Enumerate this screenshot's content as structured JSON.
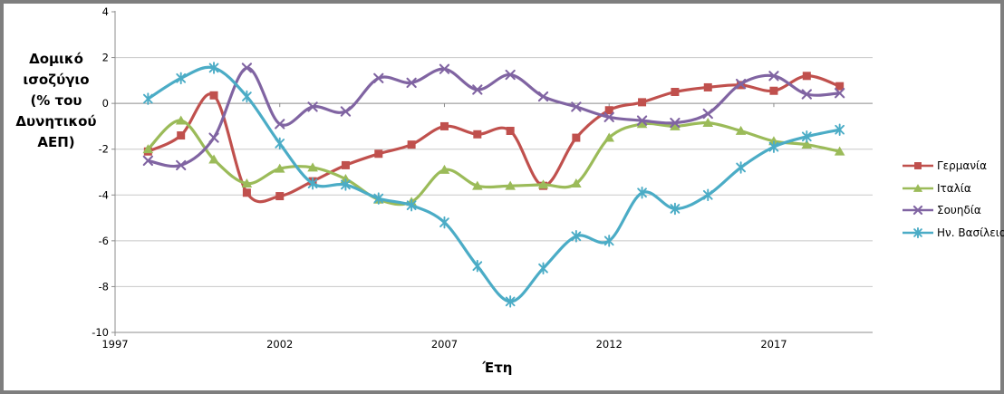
{
  "chart_data": {
    "type": "line",
    "smoothed": true,
    "xlabel": "Έτη",
    "ylabel": "Δομικό ισοζύγιο (% του Δυνητικού ΑΕΠ)",
    "ylabel_lines": [
      "Δομικό",
      "ισοζύγιο",
      "(% του",
      "Δυνητικού",
      "ΑΕΠ)"
    ],
    "xlim": [
      1997,
      2020
    ],
    "ylim": [
      -10,
      4
    ],
    "xticks": [
      1997,
      2002,
      2007,
      2012,
      2017
    ],
    "yticks": [
      4,
      2,
      0,
      -2,
      -4,
      -6,
      -8,
      -10
    ],
    "grid": true,
    "legend_position": "right",
    "x": [
      1998,
      1999,
      2000,
      2001,
      2002,
      2003,
      2004,
      2005,
      2006,
      2007,
      2008,
      2009,
      2010,
      2011,
      2012,
      2013,
      2014,
      2015,
      2016,
      2017,
      2018,
      2019
    ],
    "series": [
      {
        "id": "germany",
        "name": "Γερμανία",
        "color": "#C0504D",
        "marker": "square",
        "values": [
          -2.1,
          -1.4,
          0.35,
          -3.9,
          -4.05,
          -3.4,
          -2.7,
          -2.2,
          -1.8,
          -1.0,
          -1.35,
          -1.2,
          -3.6,
          -1.5,
          -0.3,
          0.05,
          0.5,
          0.7,
          0.8,
          0.55,
          1.2,
          0.75
        ]
      },
      {
        "id": "italy",
        "name": "Ιταλία",
        "color": "#9BBB59",
        "marker": "triangle",
        "values": [
          -2.0,
          -0.75,
          -2.45,
          -3.5,
          -2.85,
          -2.8,
          -3.3,
          -4.2,
          -4.3,
          -2.9,
          -3.6,
          -3.6,
          -3.55,
          -3.5,
          -1.5,
          -0.9,
          -1.0,
          -0.85,
          -1.2,
          -1.65,
          -1.8,
          -2.1
        ]
      },
      {
        "id": "sweden",
        "name": "Σουηδία",
        "color": "#8064A2",
        "marker": "x",
        "values": [
          -2.5,
          -2.7,
          -1.5,
          1.55,
          -0.9,
          -0.15,
          -0.35,
          1.1,
          0.9,
          1.5,
          0.6,
          1.25,
          0.3,
          -0.15,
          -0.6,
          -0.75,
          -0.85,
          -0.45,
          0.85,
          1.2,
          0.4,
          0.45
        ]
      },
      {
        "id": "uk",
        "name": "Ην. Βασίλειο",
        "color": "#4BACC6",
        "marker": "asterisk",
        "values": [
          0.2,
          1.1,
          1.55,
          0.3,
          -1.75,
          -3.5,
          -3.55,
          -4.15,
          -4.45,
          -5.2,
          -7.1,
          -8.65,
          -7.2,
          -5.8,
          -6.0,
          -3.9,
          -4.6,
          -4.0,
          -2.8,
          -1.9,
          -1.45,
          -1.15
        ]
      }
    ]
  },
  "colors": {
    "grid": "#C8C8C8",
    "axis": "#8C8C8C",
    "frame_border": "#7E7E7E",
    "background": "#FFFFFF",
    "text": "#000000"
  }
}
